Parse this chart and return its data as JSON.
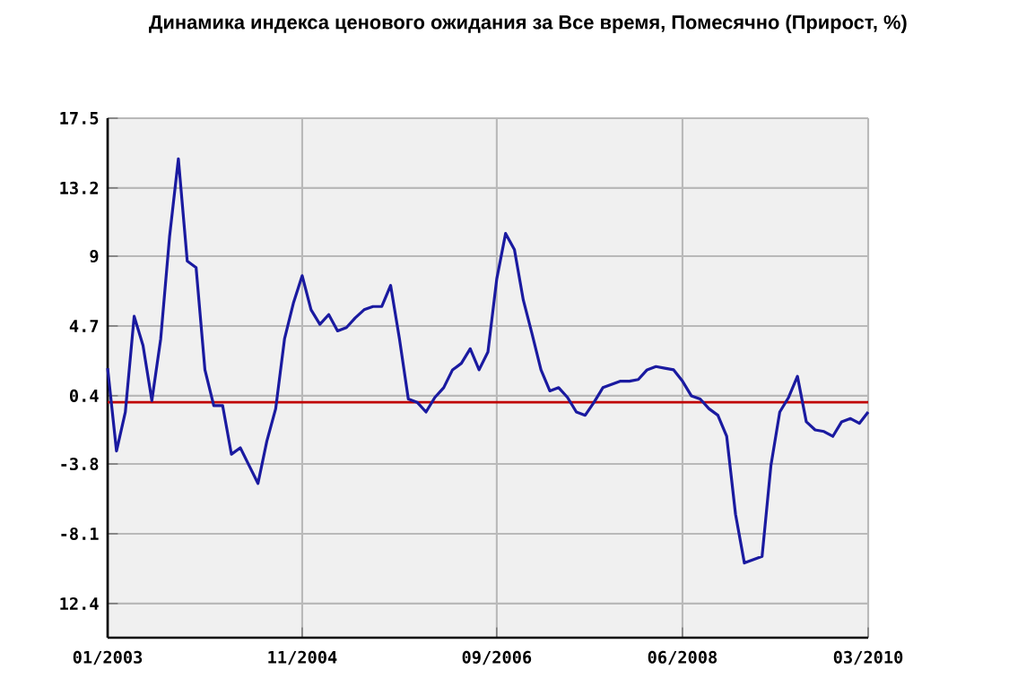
{
  "chart_data": {
    "type": "line",
    "title": "Динамика индекса ценового ожидания за Все время, Помесячно (Прирост, %)",
    "x": [
      "2003-01",
      "2003-02",
      "2003-03",
      "2003-04",
      "2003-05",
      "2003-06",
      "2003-07",
      "2003-08",
      "2003-09",
      "2003-10",
      "2003-11",
      "2003-12",
      "2004-01",
      "2004-02",
      "2004-03",
      "2004-04",
      "2004-05",
      "2004-06",
      "2004-07",
      "2004-08",
      "2004-09",
      "2004-10",
      "2004-11",
      "2004-12",
      "2005-01",
      "2005-02",
      "2005-03",
      "2005-04",
      "2005-05",
      "2005-06",
      "2005-07",
      "2005-08",
      "2005-09",
      "2005-10",
      "2005-11",
      "2005-12",
      "2006-01",
      "2006-02",
      "2006-03",
      "2006-04",
      "2006-05",
      "2006-06",
      "2006-07",
      "2006-08",
      "2006-09",
      "2006-10",
      "2006-11",
      "2006-12",
      "2007-01",
      "2007-02",
      "2007-03",
      "2007-04",
      "2007-05",
      "2007-06",
      "2007-07",
      "2007-08",
      "2007-09",
      "2007-10",
      "2007-11",
      "2007-12",
      "2008-01",
      "2008-02",
      "2008-03",
      "2008-04",
      "2008-05",
      "2008-06",
      "2008-07",
      "2008-08",
      "2008-09",
      "2008-10",
      "2008-11",
      "2008-12",
      "2009-01",
      "2009-02",
      "2009-03",
      "2009-04",
      "2009-05",
      "2009-06",
      "2009-07",
      "2009-08",
      "2009-09",
      "2009-10",
      "2009-11",
      "2009-12",
      "2010-01",
      "2010-02",
      "2010-03"
    ],
    "series": [
      {
        "color": "#1a1aa0",
        "values": [
          2.1,
          -3.0,
          -0.6,
          5.3,
          3.5,
          0.1,
          3.9,
          10.2,
          15.0,
          8.7,
          8.3,
          2.0,
          -0.2,
          -0.2,
          -3.2,
          -2.8,
          -3.9,
          -5.0,
          -2.4,
          -0.4,
          3.9,
          6.1,
          7.8,
          5.7,
          4.8,
          5.4,
          4.4,
          4.6,
          5.2,
          5.7,
          5.9,
          5.9,
          7.2,
          3.9,
          0.2,
          0.0,
          -0.6,
          0.3,
          0.9,
          2.0,
          2.4,
          3.3,
          2.0,
          3.1,
          7.6,
          10.4,
          9.4,
          6.3,
          4.2,
          2.0,
          0.7,
          0.9,
          0.3,
          -0.6,
          -0.8,
          0.0,
          0.9,
          1.1,
          1.3,
          1.3,
          1.4,
          2.0,
          2.2,
          2.1,
          2.0,
          1.3,
          0.4,
          0.2,
          -0.4,
          -0.8,
          -2.1,
          -6.9,
          -9.9,
          -9.7,
          -9.5,
          -3.9,
          -0.6,
          0.3,
          1.6,
          -1.2,
          -1.7,
          -1.8,
          -2.1,
          -1.2,
          -1.0,
          -1.3,
          -0.6
        ]
      }
    ],
    "xlim": [
      "2003-01",
      "2010-03"
    ],
    "xticks": [
      {
        "value": "2003-01",
        "label": "01/2003"
      },
      {
        "value": "2004-11",
        "label": "11/2004"
      },
      {
        "value": "2006-09",
        "label": "09/2006"
      },
      {
        "value": "2008-06",
        "label": "06/2008"
      },
      {
        "value": "2010-03",
        "label": "03/2010"
      }
    ],
    "ylim": [
      -14.5,
      17.5
    ],
    "yticks": [
      17.5,
      13.2,
      9,
      4.7,
      0.4,
      -3.8,
      -8.1,
      {
        "value": -12.4,
        "label": "12.4"
      }
    ],
    "grid": true,
    "marker": "none",
    "line_style": "solid",
    "ref_lines": [
      {
        "axis": "y",
        "value": 0,
        "color": "#c00000"
      }
    ]
  }
}
